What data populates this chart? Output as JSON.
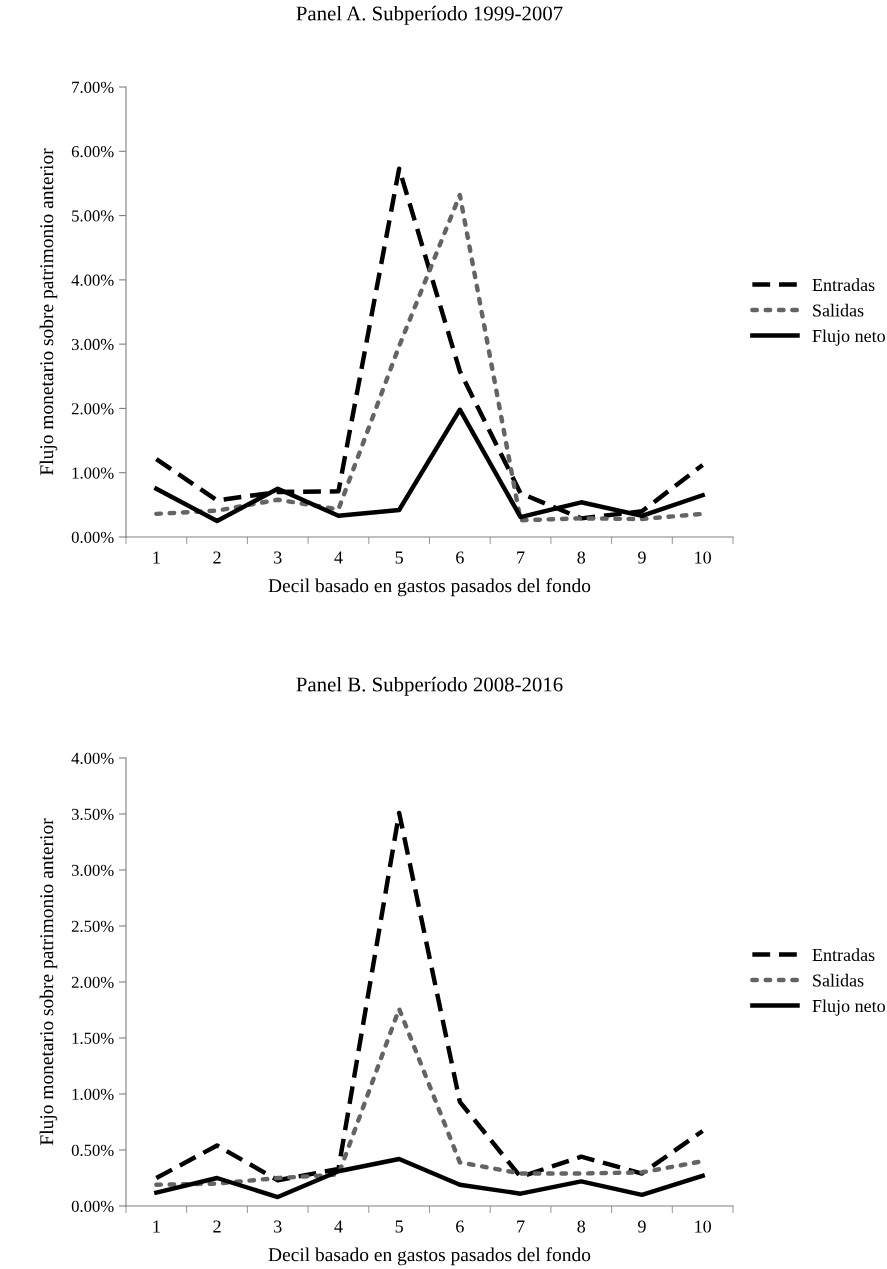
{
  "chart_data": [
    {
      "type": "line",
      "title": "Panel A. Subperíodo 1999-2007",
      "xlabel": "Decil basado en gastos pasados del fondo",
      "ylabel": "Flujo monetario sobre patrimonio anterior",
      "categories": [
        "1",
        "2",
        "3",
        "4",
        "5",
        "6",
        "7",
        "8",
        "9",
        "10"
      ],
      "series": [
        {
          "name": "Entradas",
          "color": "#000000",
          "line_style": "dashed",
          "values": [
            1.21,
            0.57,
            0.7,
            0.71,
            5.73,
            2.58,
            0.68,
            0.29,
            0.4,
            1.12
          ]
        },
        {
          "name": "Salidas",
          "color": "#646464",
          "line_style": "dotted",
          "values": [
            0.36,
            0.41,
            0.58,
            0.43,
            2.97,
            5.32,
            0.26,
            0.29,
            0.28,
            0.36
          ]
        },
        {
          "name": "Flujo neto",
          "color": "#000000",
          "line_style": "solid",
          "values": [
            0.75,
            0.25,
            0.75,
            0.33,
            0.42,
            1.98,
            0.31,
            0.54,
            0.33,
            0.65
          ]
        }
      ],
      "ylim": [
        0,
        7
      ],
      "yticks": [
        {
          "value": 0,
          "label": "0.00%"
        },
        {
          "value": 1,
          "label": "1.00%"
        },
        {
          "value": 2,
          "label": "2.00%"
        },
        {
          "value": 3,
          "label": "3.00%"
        },
        {
          "value": 4,
          "label": "4.00%"
        },
        {
          "value": 5,
          "label": "5.00%"
        },
        {
          "value": 6,
          "label": "6.00%"
        },
        {
          "value": 7,
          "label": "7.00%"
        }
      ],
      "grid": false,
      "legend": "right",
      "marker": "none"
    },
    {
      "type": "line",
      "title": "Panel B. Subperíodo 2008-2016",
      "xlabel": "Decil basado en gastos pasados del fondo",
      "ylabel": "Flujo monetario sobre patrimonio anterior",
      "categories": [
        "1",
        "2",
        "3",
        "4",
        "5",
        "6",
        "7",
        "8",
        "9",
        "10"
      ],
      "series": [
        {
          "name": "Entradas",
          "color": "#000000",
          "line_style": "dashed",
          "values": [
            0.25,
            0.54,
            0.23,
            0.33,
            3.51,
            0.93,
            0.26,
            0.44,
            0.29,
            0.67
          ]
        },
        {
          "name": "Salidas",
          "color": "#646464",
          "line_style": "dotted",
          "values": [
            0.19,
            0.2,
            0.25,
            0.28,
            1.76,
            0.39,
            0.29,
            0.29,
            0.3,
            0.4
          ]
        },
        {
          "name": "Flujo neto",
          "color": "#000000",
          "line_style": "solid",
          "values": [
            0.12,
            0.25,
            0.08,
            0.31,
            0.42,
            0.19,
            0.11,
            0.22,
            0.1,
            0.27
          ]
        }
      ],
      "ylim": [
        0,
        4
      ],
      "yticks": [
        {
          "value": 0,
          "label": "0.00%"
        },
        {
          "value": 0.5,
          "label": "0.50%"
        },
        {
          "value": 1,
          "label": "1.00%"
        },
        {
          "value": 1.5,
          "label": "1.50%"
        },
        {
          "value": 2,
          "label": "2.00%"
        },
        {
          "value": 2.5,
          "label": "2.50%"
        },
        {
          "value": 3,
          "label": "3.00%"
        },
        {
          "value": 3.5,
          "label": "3.50%"
        },
        {
          "value": 4,
          "label": "4.00%"
        }
      ],
      "grid": false,
      "legend": "right",
      "marker": "none"
    }
  ]
}
